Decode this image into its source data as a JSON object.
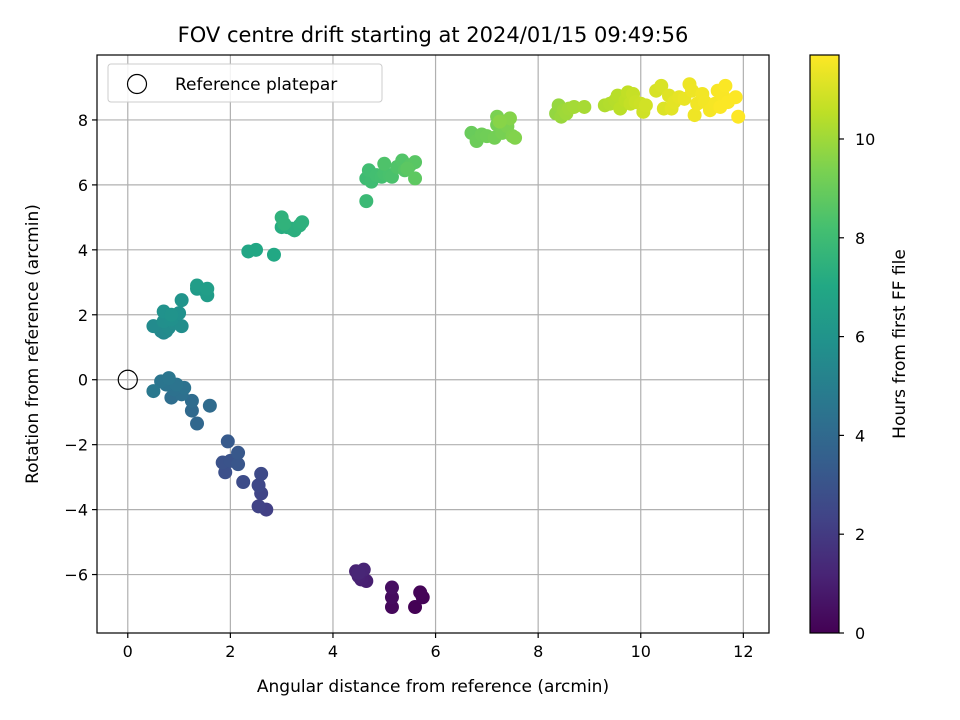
{
  "chart_data": {
    "type": "scatter",
    "title": "FOV centre drift starting at 2024/01/15 09:49:56",
    "xlabel": "Angular distance from reference (arcmin)",
    "ylabel": "Rotation from reference (arcmin)",
    "xlim": [
      -0.6,
      12.5
    ],
    "ylim": [
      -7.8,
      10.0
    ],
    "xticks": [
      0,
      2,
      4,
      6,
      8,
      10,
      12
    ],
    "yticks": [
      -6,
      -4,
      -2,
      0,
      2,
      4,
      6,
      8
    ],
    "grid": true,
    "legend": {
      "position": "top-left",
      "entries": [
        "Reference platepar"
      ]
    },
    "reference_point": {
      "x": 0,
      "y": 0
    },
    "colorbar": {
      "label": "Hours from first FF file",
      "range": [
        0,
        11.7
      ],
      "ticks": [
        0,
        2,
        4,
        6,
        8,
        10
      ],
      "colormap": "viridis"
    },
    "points": [
      {
        "x": 5.6,
        "y": -7.0,
        "t": 0.05
      },
      {
        "x": 5.75,
        "y": -6.7,
        "t": 0.1
      },
      {
        "x": 5.7,
        "y": -6.55,
        "t": 0.15
      },
      {
        "x": 5.15,
        "y": -7.0,
        "t": 0.25
      },
      {
        "x": 5.15,
        "y": -6.7,
        "t": 0.35
      },
      {
        "x": 5.15,
        "y": -6.4,
        "t": 0.45
      },
      {
        "x": 4.65,
        "y": -6.2,
        "t": 1.0
      },
      {
        "x": 4.55,
        "y": -6.15,
        "t": 1.05
      },
      {
        "x": 4.5,
        "y": -6.05,
        "t": 1.1
      },
      {
        "x": 4.45,
        "y": -5.9,
        "t": 1.15
      },
      {
        "x": 4.6,
        "y": -5.85,
        "t": 1.2
      },
      {
        "x": 4.5,
        "y": -5.95,
        "t": 1.25
      },
      {
        "x": 2.7,
        "y": -4.0,
        "t": 2.2
      },
      {
        "x": 2.55,
        "y": -3.9,
        "t": 2.3
      },
      {
        "x": 2.6,
        "y": -3.5,
        "t": 2.4
      },
      {
        "x": 2.55,
        "y": -3.25,
        "t": 2.5
      },
      {
        "x": 2.6,
        "y": -2.9,
        "t": 2.6
      },
      {
        "x": 2.25,
        "y": -3.15,
        "t": 2.7
      },
      {
        "x": 1.9,
        "y": -2.85,
        "t": 2.85
      },
      {
        "x": 1.85,
        "y": -2.55,
        "t": 2.95
      },
      {
        "x": 2.0,
        "y": -2.5,
        "t": 3.0
      },
      {
        "x": 2.15,
        "y": -2.6,
        "t": 3.1
      },
      {
        "x": 2.15,
        "y": -2.25,
        "t": 3.2
      },
      {
        "x": 1.95,
        "y": -1.9,
        "t": 3.3
      },
      {
        "x": 1.35,
        "y": -1.35,
        "t": 3.9
      },
      {
        "x": 1.25,
        "y": -0.95,
        "t": 4.0
      },
      {
        "x": 1.6,
        "y": -0.8,
        "t": 4.05
      },
      {
        "x": 1.25,
        "y": -0.65,
        "t": 4.1
      },
      {
        "x": 0.85,
        "y": -0.55,
        "t": 4.2
      },
      {
        "x": 1.05,
        "y": -0.45,
        "t": 4.3
      },
      {
        "x": 0.9,
        "y": -0.3,
        "t": 4.35
      },
      {
        "x": 1.1,
        "y": -0.25,
        "t": 4.4
      },
      {
        "x": 0.75,
        "y": -0.15,
        "t": 4.45
      },
      {
        "x": 0.95,
        "y": -0.15,
        "t": 4.5
      },
      {
        "x": 0.65,
        "y": -0.05,
        "t": 4.55
      },
      {
        "x": 0.8,
        "y": 0.05,
        "t": 4.6
      },
      {
        "x": 0.5,
        "y": -0.35,
        "t": 4.7
      },
      {
        "x": 0.7,
        "y": 1.45,
        "t": 5.4
      },
      {
        "x": 0.65,
        "y": 1.5,
        "t": 5.45
      },
      {
        "x": 0.75,
        "y": 1.5,
        "t": 5.5
      },
      {
        "x": 0.5,
        "y": 1.65,
        "t": 5.55
      },
      {
        "x": 0.8,
        "y": 1.6,
        "t": 5.6
      },
      {
        "x": 0.9,
        "y": 1.75,
        "t": 5.65
      },
      {
        "x": 1.05,
        "y": 1.65,
        "t": 5.7
      },
      {
        "x": 0.7,
        "y": 1.8,
        "t": 5.75
      },
      {
        "x": 0.85,
        "y": 1.85,
        "t": 5.8
      },
      {
        "x": 1.0,
        "y": 2.05,
        "t": 5.85
      },
      {
        "x": 0.7,
        "y": 2.1,
        "t": 5.9
      },
      {
        "x": 0.85,
        "y": 2.0,
        "t": 5.95
      },
      {
        "x": 1.05,
        "y": 2.45,
        "t": 6.0
      },
      {
        "x": 1.35,
        "y": 2.8,
        "t": 6.3
      },
      {
        "x": 1.5,
        "y": 2.75,
        "t": 6.35
      },
      {
        "x": 1.55,
        "y": 2.6,
        "t": 6.4
      },
      {
        "x": 1.35,
        "y": 2.9,
        "t": 6.45
      },
      {
        "x": 1.55,
        "y": 2.8,
        "t": 6.5
      },
      {
        "x": 2.35,
        "y": 3.95,
        "t": 6.9
      },
      {
        "x": 2.5,
        "y": 4.0,
        "t": 6.95
      },
      {
        "x": 2.85,
        "y": 3.85,
        "t": 7.0
      },
      {
        "x": 3.0,
        "y": 4.7,
        "t": 7.2
      },
      {
        "x": 3.1,
        "y": 4.7,
        "t": 7.25
      },
      {
        "x": 3.2,
        "y": 4.65,
        "t": 7.3
      },
      {
        "x": 3.25,
        "y": 4.6,
        "t": 7.35
      },
      {
        "x": 3.35,
        "y": 4.75,
        "t": 7.4
      },
      {
        "x": 3.4,
        "y": 4.85,
        "t": 7.45
      },
      {
        "x": 3.0,
        "y": 5.0,
        "t": 7.5
      },
      {
        "x": 3.05,
        "y": 4.8,
        "t": 7.55
      },
      {
        "x": 4.65,
        "y": 5.5,
        "t": 7.9
      },
      {
        "x": 4.65,
        "y": 6.2,
        "t": 8.0
      },
      {
        "x": 4.75,
        "y": 6.1,
        "t": 8.05
      },
      {
        "x": 4.7,
        "y": 6.45,
        "t": 8.1
      },
      {
        "x": 4.85,
        "y": 6.3,
        "t": 8.15
      },
      {
        "x": 4.95,
        "y": 6.25,
        "t": 8.2
      },
      {
        "x": 5.0,
        "y": 6.35,
        "t": 8.25
      },
      {
        "x": 5.1,
        "y": 6.3,
        "t": 8.3
      },
      {
        "x": 5.15,
        "y": 6.25,
        "t": 8.35
      },
      {
        "x": 5.0,
        "y": 6.65,
        "t": 8.4
      },
      {
        "x": 5.25,
        "y": 6.55,
        "t": 8.45
      },
      {
        "x": 5.35,
        "y": 6.75,
        "t": 8.5
      },
      {
        "x": 5.4,
        "y": 6.45,
        "t": 8.55
      },
      {
        "x": 5.5,
        "y": 6.6,
        "t": 8.6
      },
      {
        "x": 5.6,
        "y": 6.7,
        "t": 8.65
      },
      {
        "x": 5.45,
        "y": 6.5,
        "t": 8.7
      },
      {
        "x": 5.6,
        "y": 6.2,
        "t": 8.75
      },
      {
        "x": 6.7,
        "y": 7.6,
        "t": 9.0
      },
      {
        "x": 6.8,
        "y": 7.35,
        "t": 9.05
      },
      {
        "x": 6.9,
        "y": 7.55,
        "t": 9.1
      },
      {
        "x": 7.0,
        "y": 7.5,
        "t": 9.15
      },
      {
        "x": 7.15,
        "y": 7.45,
        "t": 9.2
      },
      {
        "x": 7.2,
        "y": 7.85,
        "t": 9.25
      },
      {
        "x": 7.3,
        "y": 7.6,
        "t": 9.3
      },
      {
        "x": 7.2,
        "y": 8.1,
        "t": 9.35
      },
      {
        "x": 7.4,
        "y": 7.8,
        "t": 9.4
      },
      {
        "x": 7.5,
        "y": 7.5,
        "t": 9.45
      },
      {
        "x": 7.55,
        "y": 7.45,
        "t": 9.5
      },
      {
        "x": 7.45,
        "y": 8.05,
        "t": 9.55
      },
      {
        "x": 7.25,
        "y": 7.95,
        "t": 9.6
      },
      {
        "x": 8.35,
        "y": 8.2,
        "t": 9.8
      },
      {
        "x": 8.4,
        "y": 8.45,
        "t": 9.85
      },
      {
        "x": 8.45,
        "y": 8.1,
        "t": 9.9
      },
      {
        "x": 8.5,
        "y": 8.3,
        "t": 9.95
      },
      {
        "x": 8.55,
        "y": 8.2,
        "t": 10.0
      },
      {
        "x": 8.6,
        "y": 8.35,
        "t": 10.05
      },
      {
        "x": 8.7,
        "y": 8.4,
        "t": 10.1
      },
      {
        "x": 8.9,
        "y": 8.4,
        "t": 10.15
      },
      {
        "x": 9.3,
        "y": 8.45,
        "t": 10.3
      },
      {
        "x": 9.4,
        "y": 8.5,
        "t": 10.35
      },
      {
        "x": 9.5,
        "y": 8.6,
        "t": 10.4
      },
      {
        "x": 9.55,
        "y": 8.75,
        "t": 10.45
      },
      {
        "x": 9.6,
        "y": 8.35,
        "t": 10.5
      },
      {
        "x": 9.7,
        "y": 8.6,
        "t": 10.55
      },
      {
        "x": 9.75,
        "y": 8.85,
        "t": 10.6
      },
      {
        "x": 9.8,
        "y": 8.5,
        "t": 10.65
      },
      {
        "x": 9.85,
        "y": 8.8,
        "t": 10.7
      },
      {
        "x": 9.9,
        "y": 8.55,
        "t": 10.75
      },
      {
        "x": 10.0,
        "y": 8.5,
        "t": 10.8
      },
      {
        "x": 10.05,
        "y": 8.25,
        "t": 10.85
      },
      {
        "x": 10.1,
        "y": 8.45,
        "t": 10.9
      },
      {
        "x": 10.3,
        "y": 8.9,
        "t": 11.0
      },
      {
        "x": 10.4,
        "y": 9.05,
        "t": 11.05
      },
      {
        "x": 10.45,
        "y": 8.35,
        "t": 11.1
      },
      {
        "x": 10.55,
        "y": 8.75,
        "t": 11.15
      },
      {
        "x": 10.6,
        "y": 8.35,
        "t": 11.2
      },
      {
        "x": 10.65,
        "y": 8.55,
        "t": 11.25
      },
      {
        "x": 10.75,
        "y": 8.7,
        "t": 11.3
      },
      {
        "x": 10.85,
        "y": 8.65,
        "t": 11.35
      },
      {
        "x": 10.95,
        "y": 9.1,
        "t": 11.4
      },
      {
        "x": 11.0,
        "y": 8.9,
        "t": 11.42
      },
      {
        "x": 11.05,
        "y": 8.15,
        "t": 11.45
      },
      {
        "x": 11.1,
        "y": 8.5,
        "t": 11.48
      },
      {
        "x": 11.2,
        "y": 8.8,
        "t": 11.5
      },
      {
        "x": 11.25,
        "y": 8.55,
        "t": 11.52
      },
      {
        "x": 11.35,
        "y": 8.3,
        "t": 11.55
      },
      {
        "x": 11.45,
        "y": 8.5,
        "t": 11.58
      },
      {
        "x": 11.5,
        "y": 8.9,
        "t": 11.6
      },
      {
        "x": 11.6,
        "y": 8.75,
        "t": 11.62
      },
      {
        "x": 11.65,
        "y": 9.05,
        "t": 11.64
      },
      {
        "x": 11.55,
        "y": 8.4,
        "t": 11.66
      },
      {
        "x": 11.7,
        "y": 8.55,
        "t": 11.67
      },
      {
        "x": 11.85,
        "y": 8.7,
        "t": 11.68
      },
      {
        "x": 11.9,
        "y": 8.1,
        "t": 11.7
      }
    ]
  }
}
